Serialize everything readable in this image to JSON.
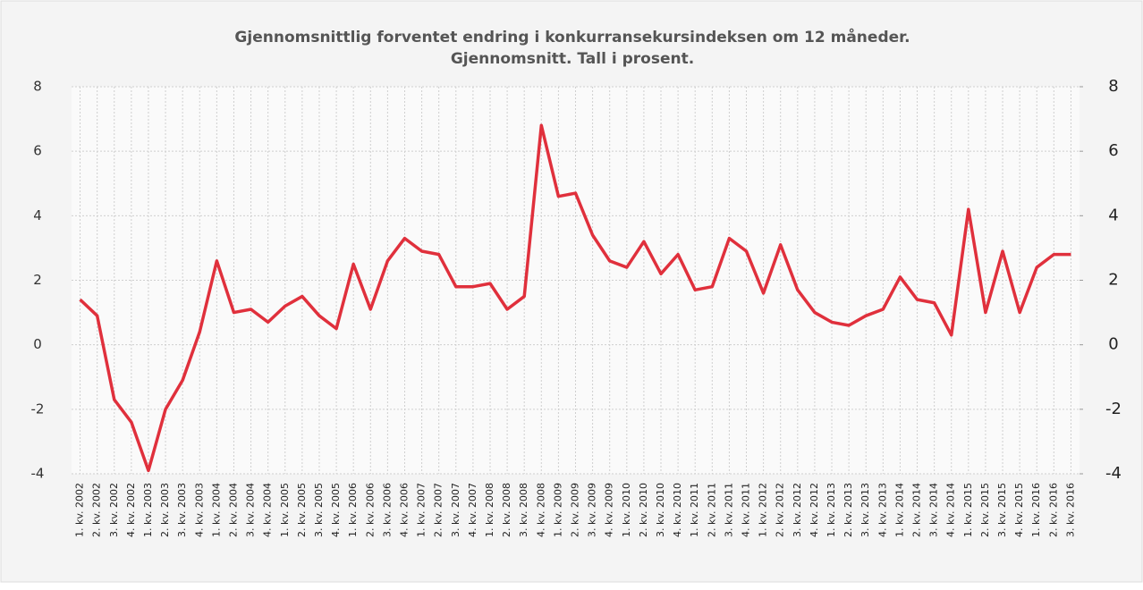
{
  "chart_data": {
    "type": "line",
    "title": "Gjennomsnittlig forventet endring i konkurransekursindeksen om 12 måneder.",
    "subtitle": "Gjennomsnitt. Tall i prosent.",
    "categories": [
      "1. kv. 2002",
      "2. kv. 2002",
      "3. kv. 2002",
      "4. kv. 2002",
      "1. kv. 2003",
      "2. kv. 2003",
      "3. kv. 2003",
      "4. kv. 2003",
      "1. kv. 2004",
      "2. kv. 2004",
      "3. kv. 2004",
      "4. kv. 2004",
      "1. kv. 2005",
      "2. kv. 2005",
      "3. kv. 2005",
      "4. kv. 2005",
      "1. kv. 2006",
      "2. kv. 2006",
      "3. kv. 2006",
      "4. kv. 2006",
      "1. kv. 2007",
      "2. kv. 2007",
      "3. kv. 2007",
      "4. kv. 2007",
      "1. kv. 2008",
      "2. kv. 2008",
      "3. kv. 2008",
      "4. kv. 2008",
      "1. kv. 2009",
      "2. kv. 2009",
      "3. kv. 2009",
      "4. kv. 2009",
      "1. kv. 2010",
      "2. kv. 2010",
      "3. kv. 2010",
      "4. kv. 2010",
      "1. kv. 2011",
      "2. kv. 2011",
      "3. kv. 2011",
      "4. kv. 2011",
      "1. kv. 2012",
      "2. kv. 2012",
      "3. kv. 2012",
      "4. kv. 2012",
      "1. kv. 2013",
      "2. kv. 2013",
      "3. kv. 2013",
      "4. kv. 2013",
      "1. kv. 2014",
      "2. kv. 2014",
      "3. kv. 2014",
      "4. kv. 2014",
      "1. kv. 2015",
      "2. kv. 2015",
      "3. kv. 2015",
      "4. kv. 2015",
      "1. kv. 2016",
      "2. kv. 2016",
      "3. kv. 2016"
    ],
    "series": [
      {
        "color": "#e0303c",
        "values": [
          1.4,
          0.9,
          -1.7,
          -2.4,
          -3.9,
          -2.0,
          -1.1,
          0.4,
          2.6,
          1.0,
          1.1,
          0.7,
          1.2,
          1.5,
          0.9,
          0.5,
          2.5,
          1.1,
          2.6,
          3.3,
          2.9,
          2.8,
          1.8,
          1.8,
          1.9,
          1.1,
          1.5,
          6.8,
          4.6,
          4.7,
          3.4,
          2.6,
          2.4,
          3.2,
          2.2,
          2.8,
          1.7,
          1.8,
          3.3,
          2.9,
          1.6,
          3.1,
          1.7,
          1.0,
          0.7,
          0.6,
          0.9,
          1.1,
          2.1,
          1.4,
          1.3,
          0.3,
          4.2,
          1.0,
          2.9,
          1.0,
          2.4,
          2.8,
          2.8
        ]
      }
    ],
    "ylim": [
      -4,
      8
    ],
    "yticks": [
      -4,
      -2,
      0,
      2,
      4,
      6,
      8
    ],
    "y2lim": [
      -4,
      8
    ],
    "y2ticks": [
      -4,
      -2,
      0,
      2,
      4,
      6,
      8
    ],
    "grid": true
  }
}
